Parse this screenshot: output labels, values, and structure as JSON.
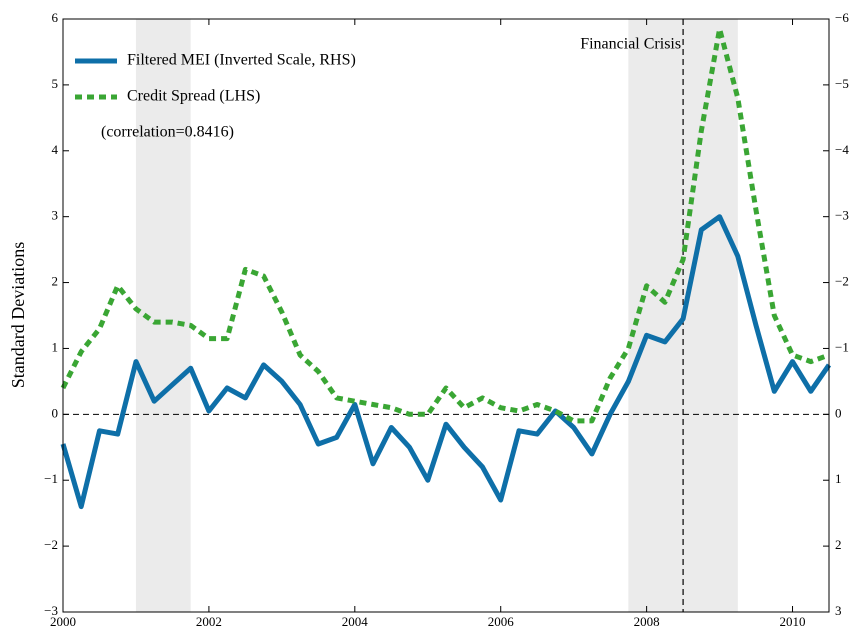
{
  "chart_data": {
    "type": "line",
    "ylabel": "Standard Deviations",
    "annotation": "(correlation=0.8416)",
    "x": [
      2000,
      2000.25,
      2000.5,
      2000.75,
      2001,
      2001.25,
      2001.5,
      2001.75,
      2002,
      2002.25,
      2002.5,
      2002.75,
      2003,
      2003.25,
      2003.5,
      2003.75,
      2004,
      2004.25,
      2004.5,
      2004.75,
      2005,
      2005.25,
      2005.5,
      2005.75,
      2006,
      2006.25,
      2006.5,
      2006.75,
      2007,
      2007.25,
      2007.5,
      2007.75,
      2008,
      2008.25,
      2008.5,
      2008.75,
      2009,
      2009.25,
      2009.5,
      2009.75,
      2010,
      2010.25,
      2010.5
    ],
    "series": [
      {
        "name": "Filtered MEI (Inverted Scale, RHS)",
        "color": "#0e6fa8",
        "axis": "y2",
        "style": "solid",
        "values": [
          0.45,
          1.4,
          0.25,
          0.3,
          -0.8,
          -0.2,
          -0.45,
          -0.7,
          -0.05,
          -0.4,
          -0.25,
          -0.75,
          -0.5,
          -0.15,
          0.45,
          0.35,
          -0.15,
          0.75,
          0.2,
          0.5,
          1.0,
          0.15,
          0.5,
          0.8,
          1.3,
          0.25,
          0.3,
          -0.05,
          0.2,
          0.6,
          0.0,
          -0.5,
          -1.2,
          -1.1,
          -1.45,
          -2.8,
          -3.0,
          -2.4,
          -1.35,
          -0.35,
          -0.8,
          -0.35,
          -0.75
        ]
      },
      {
        "name": "Credit Spread (LHS)",
        "color": "#3aa634",
        "axis": "y",
        "style": "dotted",
        "values": [
          0.4,
          0.95,
          1.3,
          1.95,
          1.6,
          1.4,
          1.4,
          1.35,
          1.15,
          1.15,
          2.2,
          2.1,
          1.55,
          0.9,
          0.65,
          0.25,
          0.2,
          0.15,
          0.1,
          0.0,
          0.0,
          0.4,
          0.1,
          0.25,
          0.1,
          0.05,
          0.15,
          0.05,
          -0.1,
          -0.1,
          0.55,
          1.0,
          1.95,
          1.7,
          2.35,
          4.3,
          5.85,
          4.8,
          3.1,
          1.5,
          0.9,
          0.8,
          0.9
        ]
      }
    ],
    "xlim": [
      2000,
      2010.5
    ],
    "xticks": [
      2000,
      2002,
      2004,
      2006,
      2008,
      2010
    ],
    "ylim": [
      -3,
      6
    ],
    "yticks": [
      {
        "value": -3,
        "label": "−3"
      },
      {
        "value": -2,
        "label": "−2"
      },
      {
        "value": -1,
        "label": "−1"
      },
      0,
      1,
      2,
      3,
      4,
      5,
      6
    ],
    "y2lim": [
      3,
      -6
    ],
    "y2ticks": [
      {
        "value": -6,
        "label": "−6"
      },
      {
        "value": -5,
        "label": "−5"
      },
      {
        "value": -4,
        "label": "−4"
      },
      {
        "value": -3,
        "label": "−3"
      },
      {
        "value": -2,
        "label": "−2"
      },
      {
        "value": -1,
        "label": "−1"
      },
      0,
      1,
      2,
      3
    ],
    "shaded_regions": [
      [
        2001,
        2001.75
      ],
      [
        2007.75,
        2009.25
      ]
    ],
    "shade_color": "#ebebeb",
    "vline": {
      "x": 2008.5,
      "label": "Financial Crisis"
    },
    "hline": 0,
    "legend": "upper left"
  }
}
